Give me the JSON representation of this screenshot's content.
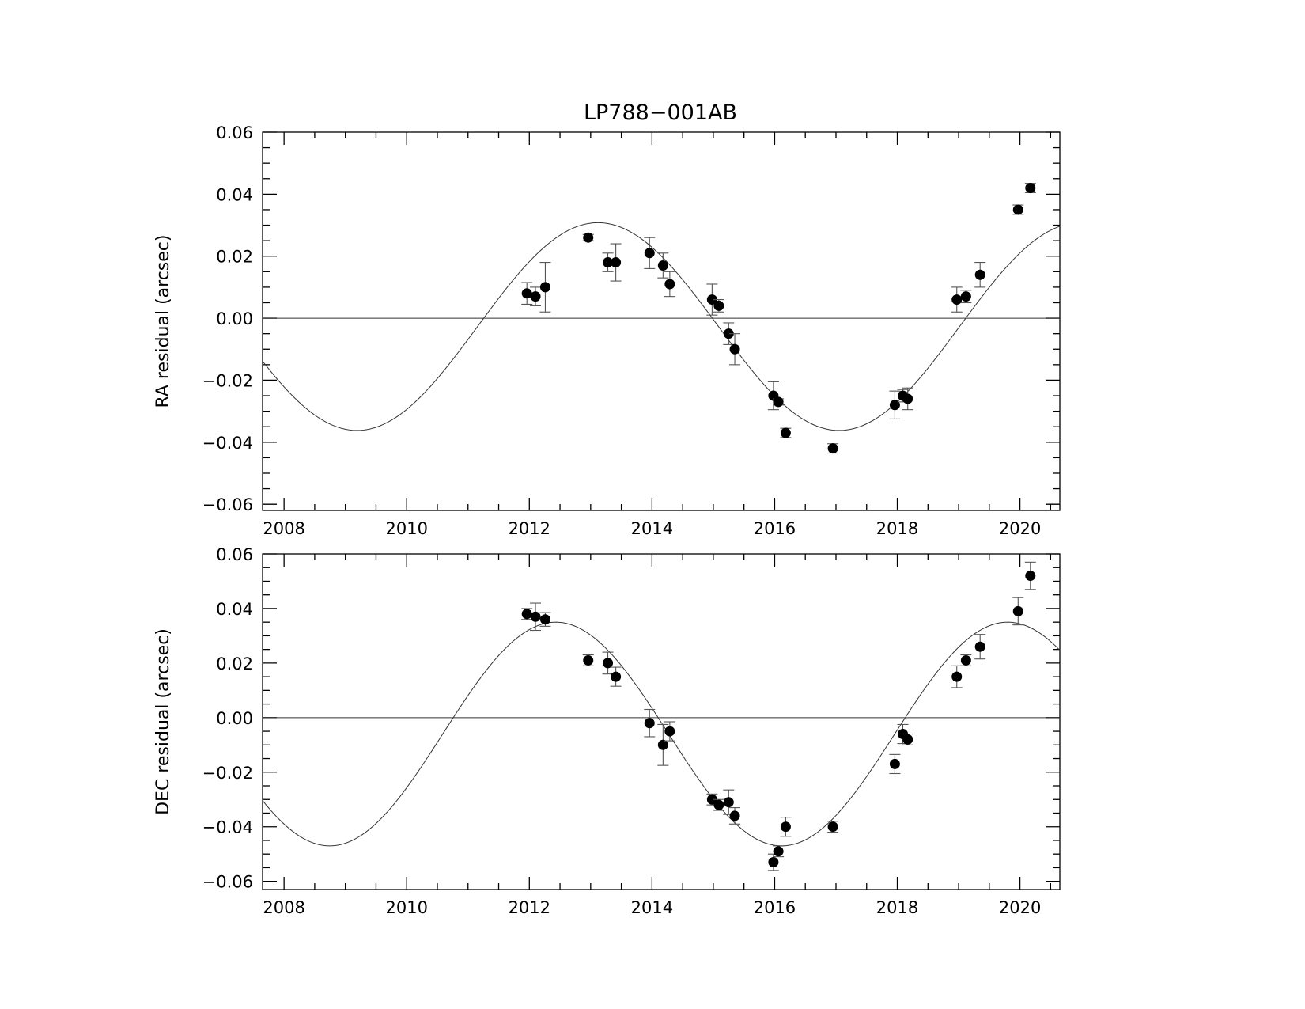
{
  "title": "LP788−001AB",
  "chart_data": [
    {
      "type": "scatter",
      "ylabel": "RA residual (arcsec)",
      "xlim": [
        2007.65,
        2020.65
      ],
      "ylim": [
        -0.062,
        0.06
      ],
      "x_ticks": [
        "2008",
        "2010",
        "2012",
        "2014",
        "2016",
        "2018",
        "2020"
      ],
      "y_ticks": [
        "0.06",
        "0.04",
        "0.02",
        "0.00",
        "−0.02",
        "−0.04",
        "−0.06"
      ],
      "reference_line": 0.0,
      "model": {
        "type": "sinusoid",
        "offset": -0.0027,
        "amplitude": 0.0335,
        "period": 7.86,
        "peak_epoch": 2013.12
      },
      "series": [
        {
          "x": [
            2011.96,
            2012.1,
            2012.26,
            2012.96,
            2013.28,
            2013.41,
            2013.96,
            2014.18,
            2014.29,
            2014.98,
            2015.09,
            2015.25,
            2015.35,
            2015.98,
            2016.06,
            2016.18,
            2016.95,
            2017.96,
            2018.09,
            2018.17,
            2018.97,
            2019.12,
            2019.35,
            2019.97,
            2020.17
          ],
          "y": [
            0.008,
            0.007,
            0.01,
            0.026,
            0.018,
            0.018,
            0.021,
            0.017,
            0.011,
            0.006,
            0.004,
            -0.005,
            -0.01,
            -0.025,
            -0.027,
            -0.037,
            -0.042,
            -0.028,
            -0.025,
            -0.026,
            0.006,
            0.007,
            0.014,
            0.035,
            0.042
          ],
          "err": [
            0.0035,
            0.003,
            0.008,
            0.001,
            0.003,
            0.006,
            0.005,
            0.004,
            0.004,
            0.005,
            0.002,
            0.0035,
            0.005,
            0.0045,
            0.001,
            0.0015,
            0.0015,
            0.0045,
            0.002,
            0.0035,
            0.004,
            0.002,
            0.004,
            0.0015,
            0.0015
          ]
        }
      ]
    },
    {
      "type": "scatter",
      "ylabel": "DEC residual (arcsec)",
      "xlim": [
        2007.65,
        2020.65
      ],
      "ylim": [
        -0.063,
        0.06
      ],
      "x_ticks": [
        "2008",
        "2010",
        "2012",
        "2014",
        "2016",
        "2018",
        "2020"
      ],
      "y_ticks": [
        "0.06",
        "0.04",
        "0.02",
        "0.00",
        "−0.02",
        "−0.04",
        "−0.06"
      ],
      "reference_line": 0.0,
      "model": {
        "type": "sinusoid",
        "offset": -0.006,
        "amplitude": 0.041,
        "period": 7.37,
        "peak_epoch": 2012.43
      },
      "series": [
        {
          "x": [
            2011.96,
            2012.1,
            2012.26,
            2012.96,
            2013.28,
            2013.41,
            2013.96,
            2014.18,
            2014.29,
            2014.98,
            2015.09,
            2015.25,
            2015.35,
            2015.98,
            2016.06,
            2016.18,
            2016.95,
            2017.96,
            2018.09,
            2018.17,
            2018.97,
            2019.12,
            2019.35,
            2019.97,
            2020.17
          ],
          "y": [
            0.038,
            0.037,
            0.036,
            0.021,
            0.02,
            0.015,
            -0.002,
            -0.01,
            -0.005,
            -0.03,
            -0.032,
            -0.031,
            -0.036,
            -0.053,
            -0.049,
            -0.04,
            -0.04,
            -0.017,
            -0.006,
            -0.008,
            0.015,
            0.021,
            0.026,
            0.039,
            0.052
          ],
          "err": [
            0.002,
            0.005,
            0.0025,
            0.002,
            0.004,
            0.0035,
            0.005,
            0.0075,
            0.0035,
            0.002,
            0.002,
            0.0045,
            0.003,
            0.003,
            0.002,
            0.0035,
            0.002,
            0.0035,
            0.0035,
            0.002,
            0.004,
            0.002,
            0.0045,
            0.005,
            0.005
          ]
        }
      ]
    }
  ]
}
